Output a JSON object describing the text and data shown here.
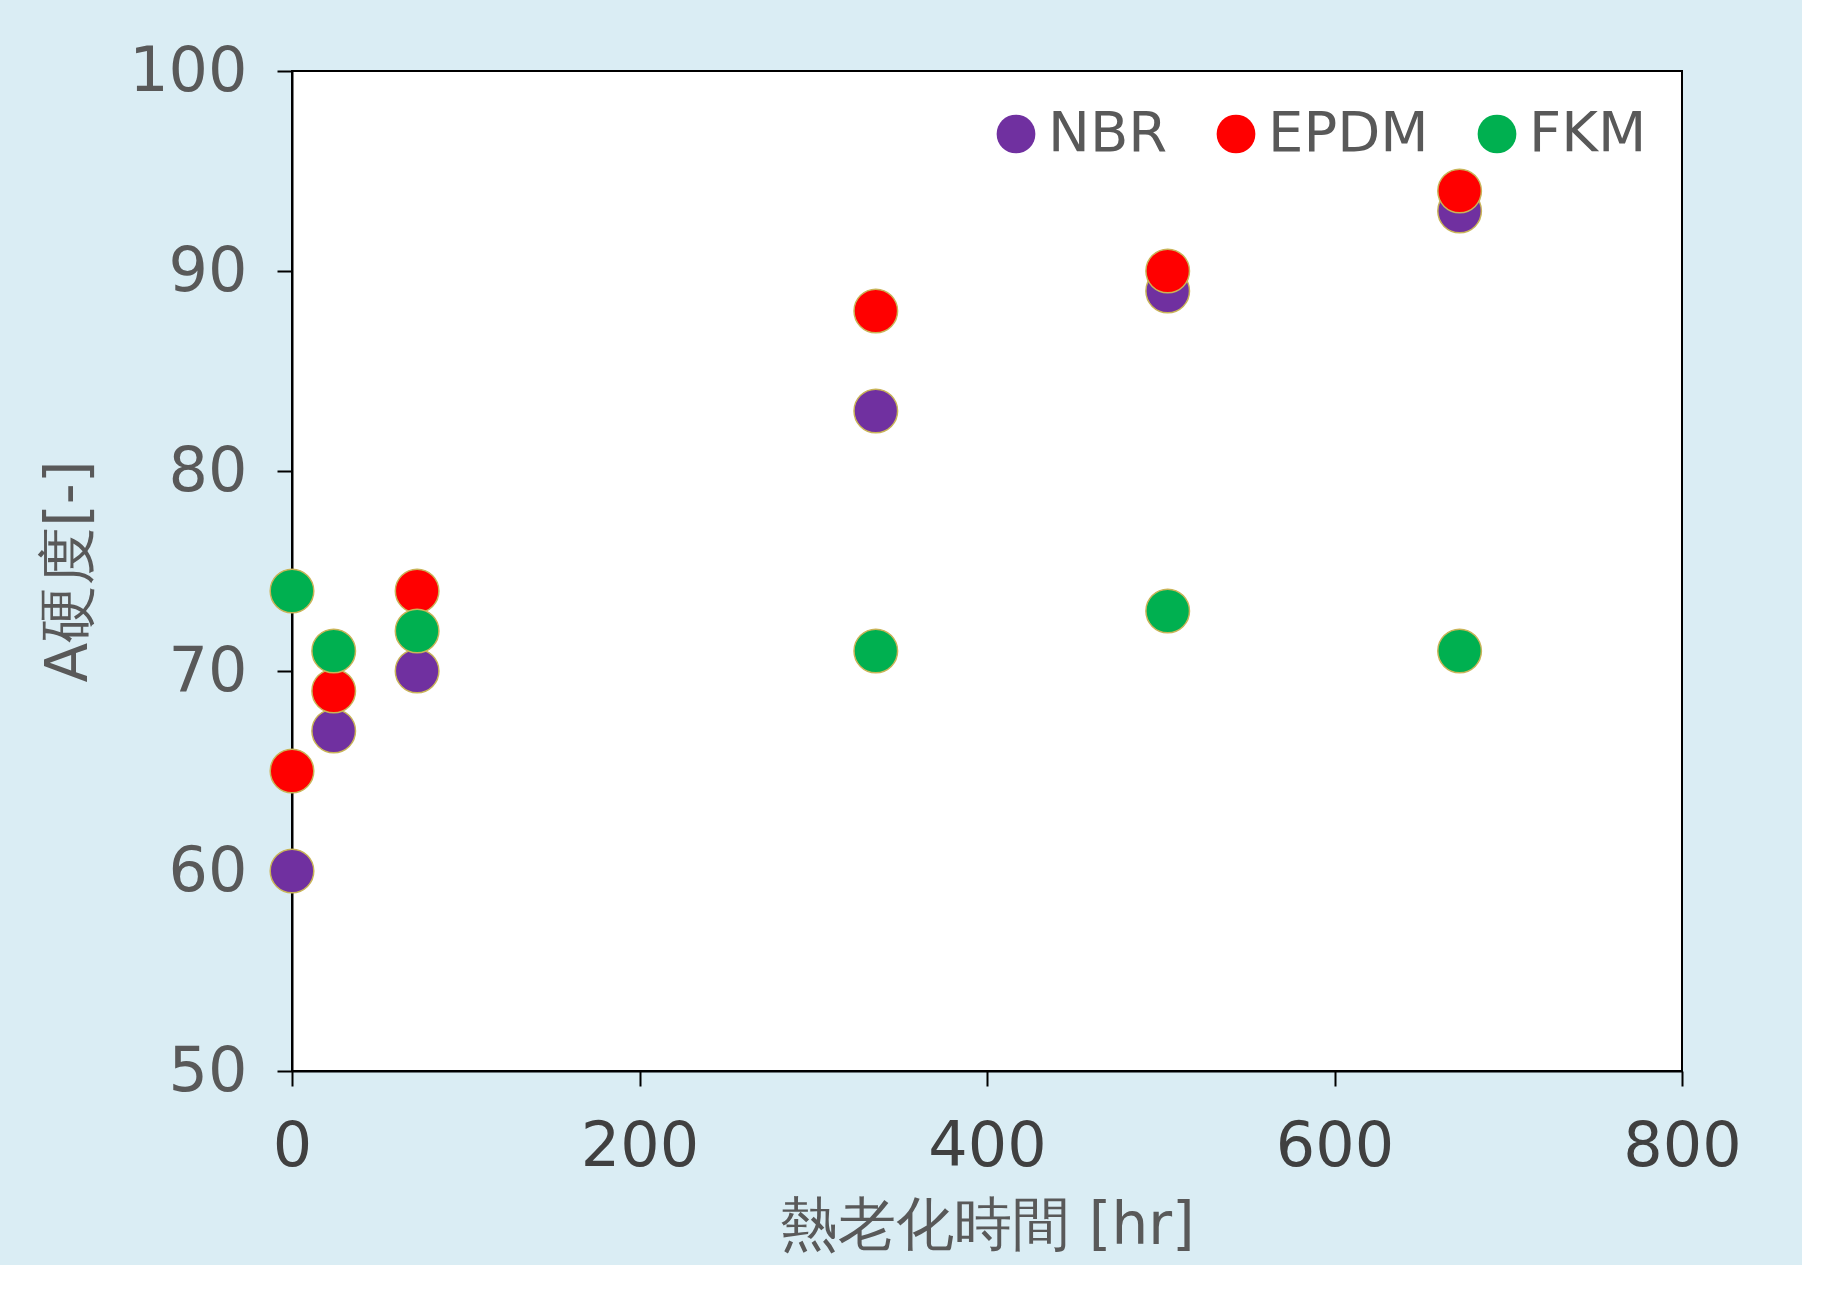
{
  "chart_data": {
    "type": "scatter",
    "xlabel": "熱老化時間 [hr]",
    "ylabel": "A硬度[-]",
    "x": [
      0,
      24,
      72,
      336,
      504,
      672
    ],
    "series": [
      {
        "name": "NBR",
        "color": "#7030a0",
        "values": [
          60,
          67,
          70,
          83,
          89,
          93
        ]
      },
      {
        "name": "EPDM",
        "color": "#ff0000",
        "values": [
          65,
          69,
          74,
          88,
          90,
          94
        ]
      },
      {
        "name": "FKM",
        "color": "#00b050",
        "values": [
          74,
          71,
          72,
          71,
          73,
          71
        ]
      }
    ],
    "xlim": [
      0,
      800
    ],
    "xticks": [
      0,
      200,
      400,
      600,
      800
    ],
    "ylim": [
      50,
      100
    ],
    "yticks": [
      50,
      60,
      70,
      80,
      90,
      100
    ],
    "marker": "circle",
    "grid": false,
    "legend": "top right"
  }
}
